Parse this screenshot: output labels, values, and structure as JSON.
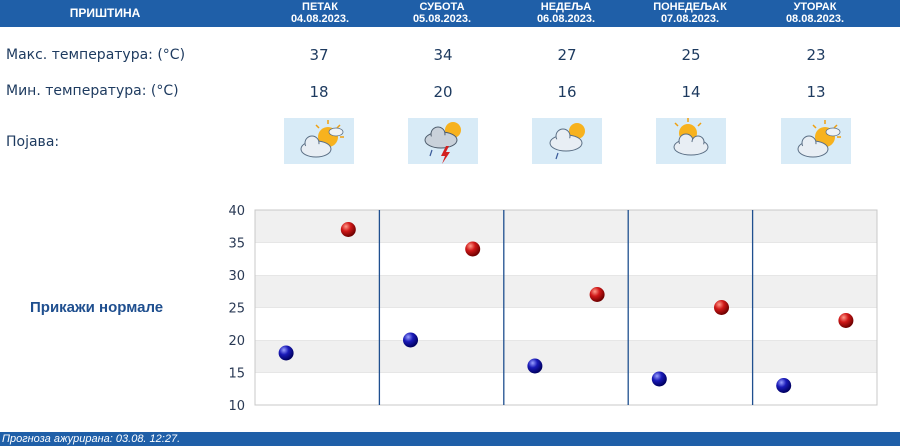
{
  "header": {
    "city": "ПРИШТИНА",
    "days": [
      {
        "name": "ПЕТАК",
        "date": "04.08.2023."
      },
      {
        "name": "СУБОТА",
        "date": "05.08.2023."
      },
      {
        "name": "НЕДЕЉА",
        "date": "06.08.2023."
      },
      {
        "name": "ПОНЕДЕЉАК",
        "date": "07.08.2023."
      },
      {
        "name": "УТОРАК",
        "date": "08.08.2023."
      }
    ]
  },
  "rows": {
    "max_label": "Макс. температура: (°C)",
    "min_label": "Мин. температура: (°C)",
    "phenomenon_label": "Појава:",
    "max": [
      "37",
      "34",
      "27",
      "25",
      "23"
    ],
    "min": [
      "18",
      "20",
      "16",
      "14",
      "13"
    ],
    "icons": [
      "sun-behind-cloud-icon",
      "thunderstorm-icon",
      "partly-cloudy-rain-icon",
      "partly-cloudy-icon",
      "sun-behind-cloud-icon"
    ]
  },
  "normals_link": "Прикажи нормале",
  "footer": "Прогноза ажурирана:  03.08.  12:27.",
  "colors": {
    "header_bg": "#1f5fa8",
    "max_marker": "#c41010",
    "min_marker": "#1515b0",
    "separator": "#1f4f8f"
  },
  "chart_data": {
    "type": "scatter",
    "categories": [
      "ПЕТАК",
      "СУБОТА",
      "НЕДЕЉА",
      "ПОНЕДЕЉАК",
      "УТОРАК"
    ],
    "series": [
      {
        "values": [
          37,
          34,
          27,
          25,
          23
        ],
        "color": "#c41010"
      },
      {
        "values": [
          18,
          20,
          16,
          14,
          13
        ],
        "color": "#1515b0"
      }
    ],
    "ylim": [
      10,
      40
    ],
    "yticks": [
      "40",
      "35",
      "30",
      "25",
      "20",
      "15",
      "10"
    ],
    "grid": "alternating horizontal bands"
  }
}
